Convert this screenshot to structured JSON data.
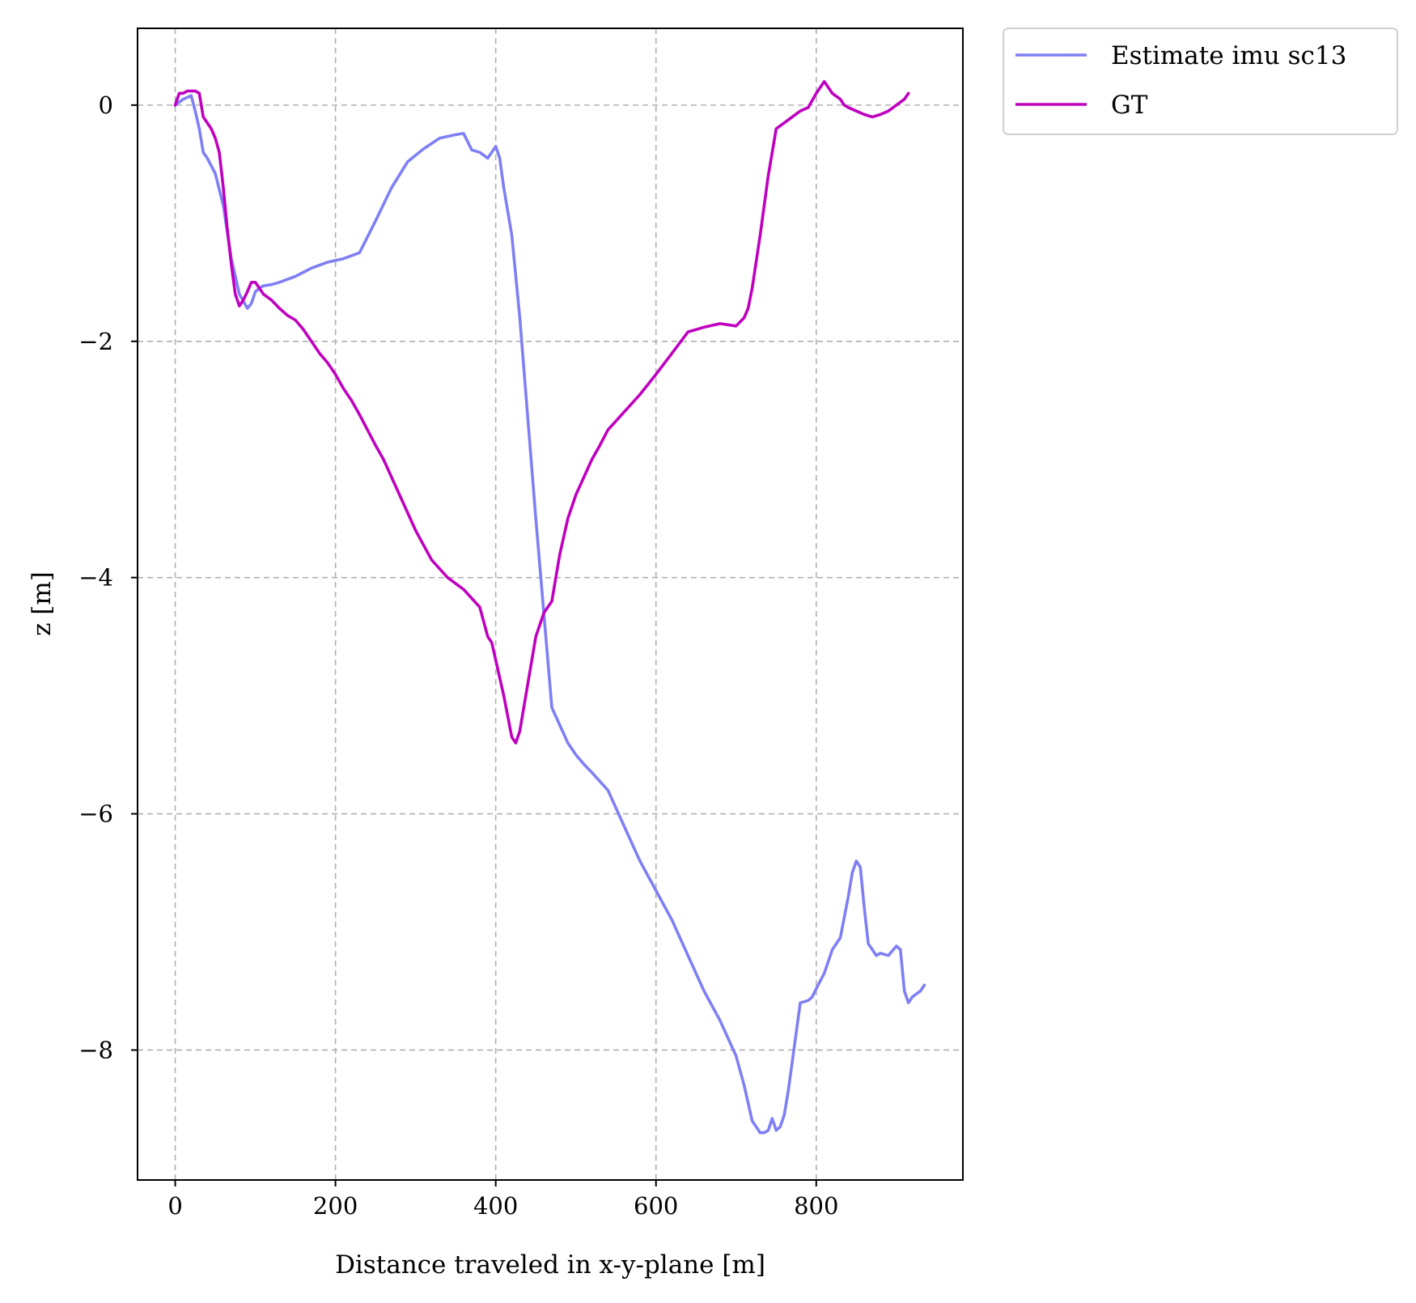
{
  "chart_data": {
    "type": "line",
    "title": "",
    "xlabel": "Distance traveled in x-y-plane [m]",
    "ylabel": "z [m]",
    "xlim": [
      -47,
      983
    ],
    "ylim": [
      -9.1,
      0.65
    ],
    "xticks": [
      0,
      200,
      400,
      600,
      800
    ],
    "xtick_labels": [
      "0",
      "200",
      "400",
      "600",
      "800"
    ],
    "yticks": [
      0,
      -2,
      -4,
      -6,
      -8
    ],
    "ytick_labels": [
      "0",
      "−2",
      "−4",
      "−6",
      "−8"
    ],
    "grid": true,
    "legend_position": "outside upper right",
    "series": [
      {
        "name": "Estimate imu sc13",
        "color": "#7f7ff5",
        "x": [
          0,
          10,
          20,
          25,
          30,
          35,
          40,
          50,
          60,
          70,
          80,
          90,
          95,
          100,
          105,
          110,
          120,
          130,
          150,
          170,
          190,
          210,
          230,
          250,
          270,
          290,
          310,
          330,
          350,
          360,
          370,
          380,
          390,
          400,
          405,
          410,
          420,
          430,
          450,
          470,
          480,
          490,
          500,
          510,
          520,
          540,
          560,
          580,
          600,
          620,
          640,
          660,
          680,
          700,
          710,
          720,
          730,
          735,
          740,
          745,
          750,
          755,
          760,
          765,
          770,
          780,
          790,
          795,
          800,
          810,
          820,
          830,
          840,
          845,
          850,
          855,
          860,
          865,
          870,
          875,
          880,
          890,
          900,
          905,
          910,
          915,
          920,
          930,
          935
        ],
        "y": [
          0.0,
          0.05,
          0.08,
          -0.05,
          -0.2,
          -0.4,
          -0.45,
          -0.58,
          -0.85,
          -1.3,
          -1.6,
          -1.72,
          -1.68,
          -1.58,
          -1.55,
          -1.53,
          -1.52,
          -1.5,
          -1.45,
          -1.38,
          -1.33,
          -1.3,
          -1.25,
          -0.98,
          -0.7,
          -0.48,
          -0.37,
          -0.28,
          -0.25,
          -0.24,
          -0.38,
          -0.4,
          -0.45,
          -0.35,
          -0.45,
          -0.7,
          -1.1,
          -1.8,
          -3.5,
          -5.1,
          -5.25,
          -5.4,
          -5.5,
          -5.58,
          -5.65,
          -5.8,
          -6.1,
          -6.4,
          -6.65,
          -6.9,
          -7.2,
          -7.5,
          -7.75,
          -8.05,
          -8.3,
          -8.6,
          -8.7,
          -8.7,
          -8.68,
          -8.58,
          -8.68,
          -8.65,
          -8.55,
          -8.35,
          -8.1,
          -7.6,
          -7.58,
          -7.55,
          -7.48,
          -7.35,
          -7.15,
          -7.05,
          -6.7,
          -6.5,
          -6.4,
          -6.45,
          -6.8,
          -7.1,
          -7.15,
          -7.2,
          -7.18,
          -7.2,
          -7.12,
          -7.15,
          -7.5,
          -7.6,
          -7.55,
          -7.5,
          -7.45
        ]
      },
      {
        "name": "GT",
        "color": "#bf00bf",
        "x": [
          0,
          5,
          10,
          15,
          20,
          25,
          30,
          35,
          40,
          45,
          50,
          55,
          60,
          65,
          70,
          75,
          80,
          85,
          90,
          95,
          100,
          105,
          110,
          120,
          130,
          140,
          150,
          160,
          170,
          180,
          190,
          200,
          210,
          220,
          230,
          240,
          250,
          260,
          270,
          280,
          290,
          300,
          320,
          340,
          360,
          380,
          390,
          395,
          400,
          410,
          420,
          425,
          430,
          440,
          450,
          460,
          470,
          475,
          480,
          490,
          500,
          510,
          520,
          530,
          540,
          560,
          580,
          600,
          620,
          640,
          660,
          680,
          690,
          700,
          710,
          715,
          720,
          730,
          740,
          750,
          760,
          770,
          780,
          790,
          800,
          810,
          820,
          830,
          835,
          840,
          850,
          860,
          870,
          880,
          890,
          900,
          910,
          915
        ],
        "y": [
          0.0,
          0.1,
          0.1,
          0.12,
          0.12,
          0.12,
          0.1,
          -0.1,
          -0.15,
          -0.2,
          -0.28,
          -0.4,
          -0.7,
          -1.05,
          -1.35,
          -1.6,
          -1.7,
          -1.65,
          -1.58,
          -1.5,
          -1.5,
          -1.55,
          -1.6,
          -1.65,
          -1.72,
          -1.78,
          -1.82,
          -1.9,
          -2.0,
          -2.1,
          -2.18,
          -2.28,
          -2.4,
          -2.5,
          -2.62,
          -2.75,
          -2.88,
          -3.0,
          -3.15,
          -3.3,
          -3.45,
          -3.6,
          -3.85,
          -4.0,
          -4.1,
          -4.25,
          -4.5,
          -4.55,
          -4.7,
          -5.0,
          -5.35,
          -5.4,
          -5.3,
          -4.9,
          -4.5,
          -4.3,
          -4.2,
          -4.0,
          -3.8,
          -3.5,
          -3.3,
          -3.15,
          -3.0,
          -2.88,
          -2.75,
          -2.6,
          -2.45,
          -2.28,
          -2.1,
          -1.92,
          -1.88,
          -1.85,
          -1.86,
          -1.87,
          -1.8,
          -1.72,
          -1.55,
          -1.1,
          -0.6,
          -0.2,
          -0.15,
          -0.1,
          -0.05,
          -0.02,
          0.1,
          0.2,
          0.1,
          0.05,
          0.0,
          -0.02,
          -0.05,
          -0.08,
          -0.1,
          -0.08,
          -0.05,
          0.0,
          0.05,
          0.1
        ]
      }
    ]
  }
}
